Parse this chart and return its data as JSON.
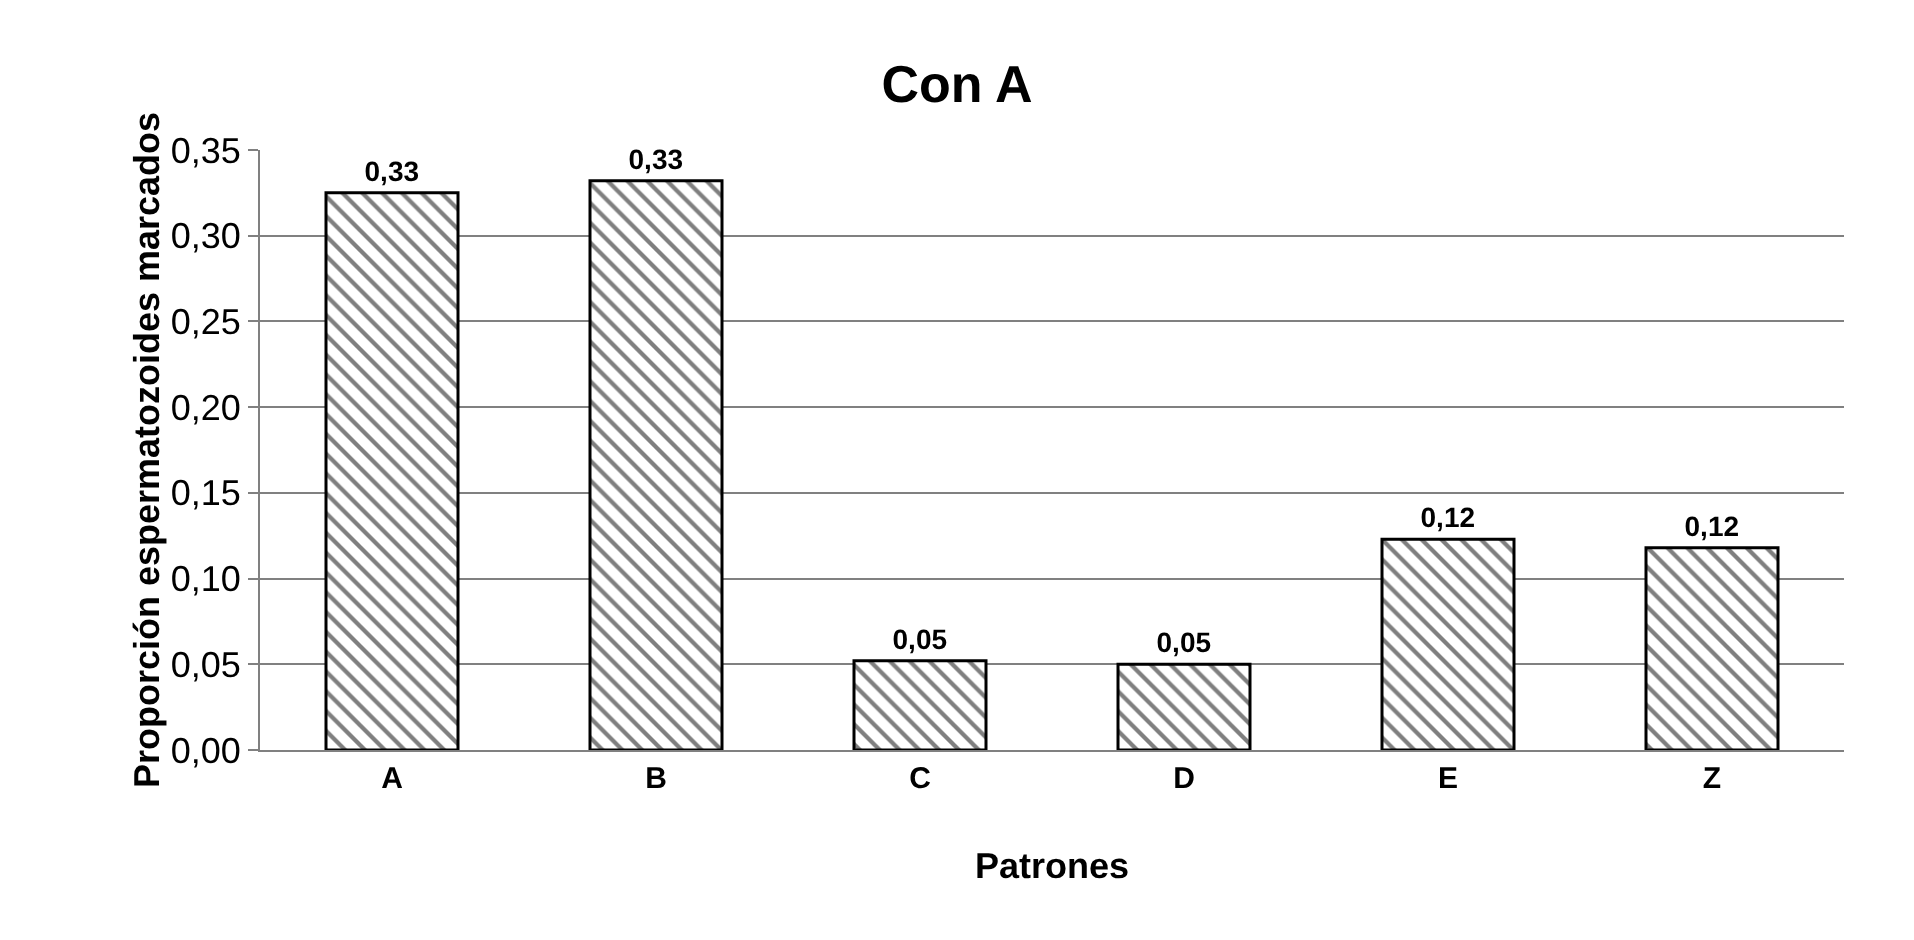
{
  "chart_data": {
    "type": "bar",
    "title": "Con A",
    "xlabel": "Patrones",
    "ylabel": "Proporción espermatozoides marcados",
    "categories": [
      "A",
      "B",
      "C",
      "D",
      "E",
      "Z"
    ],
    "values": [
      0.325,
      0.332,
      0.052,
      0.05,
      0.123,
      0.118
    ],
    "value_labels": [
      "0,33",
      "0,33",
      "0,05",
      "0,05",
      "0,12",
      "0,12"
    ],
    "color": "#000000",
    "ylim": [
      0,
      0.35
    ],
    "yticks": [
      {
        "value": 0,
        "label": "0,00"
      },
      {
        "value": 0.05,
        "label": "0,05"
      },
      {
        "value": 0.1,
        "label": "0,10"
      },
      {
        "value": 0.15,
        "label": "0,15"
      },
      {
        "value": 0.2,
        "label": "0,20"
      },
      {
        "value": 0.25,
        "label": "0,25"
      },
      {
        "value": 0.3,
        "label": "0,30"
      },
      {
        "value": 0.35,
        "label": "0,35"
      }
    ],
    "grid": "y"
  }
}
